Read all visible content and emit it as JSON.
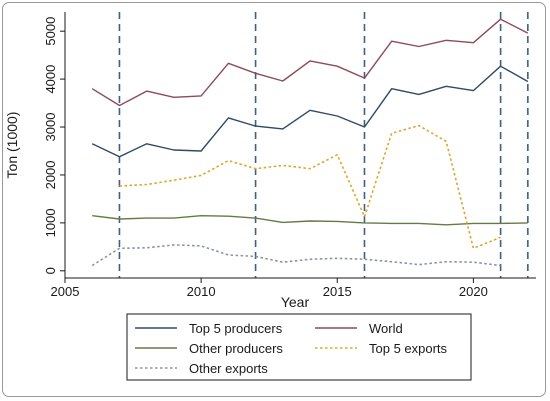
{
  "chart_data": {
    "type": "line",
    "xlabel": "Year",
    "ylabel": "Ton (1000)",
    "xlim": [
      2005,
      2022.3
    ],
    "ylim": [
      -150,
      5400
    ],
    "x_ticks": [
      2005,
      2010,
      2015,
      2020
    ],
    "x_tick_labels": [
      "2005",
      "2010",
      "2015",
      "2020"
    ],
    "y_ticks": [
      0,
      1000,
      2000,
      3000,
      4000,
      5000
    ],
    "y_tick_labels": [
      "0",
      "1000",
      "2000",
      "3000",
      "4000",
      "5000"
    ],
    "vertical_reference_lines": [
      2007,
      2012,
      2016,
      2021,
      2022
    ],
    "grid": false,
    "legend_position": "bottom",
    "series": [
      {
        "name": "Top 5 producers",
        "color": "#2f4b66",
        "style": "solid",
        "x": [
          2006,
          2007,
          2008,
          2009,
          2010,
          2011,
          2012,
          2013,
          2014,
          2015,
          2016,
          2017,
          2018,
          2019,
          2020,
          2021,
          2022
        ],
        "values": [
          2650,
          2380,
          2650,
          2520,
          2500,
          3190,
          3020,
          2960,
          3350,
          3230,
          3000,
          3800,
          3680,
          3850,
          3760,
          4270,
          3950
        ]
      },
      {
        "name": "World",
        "color": "#8c4b5a",
        "style": "solid",
        "x": [
          2006,
          2007,
          2008,
          2009,
          2010,
          2011,
          2012,
          2013,
          2014,
          2015,
          2016,
          2017,
          2018,
          2019,
          2020,
          2021,
          2022
        ],
        "values": [
          3800,
          3450,
          3750,
          3620,
          3650,
          4330,
          4120,
          3960,
          4380,
          4270,
          4020,
          4790,
          4680,
          4810,
          4760,
          5250,
          4960
        ]
      },
      {
        "name": "Other producers",
        "color": "#667a45",
        "style": "solid",
        "x": [
          2006,
          2007,
          2008,
          2009,
          2010,
          2011,
          2012,
          2013,
          2014,
          2015,
          2016,
          2017,
          2018,
          2019,
          2020,
          2021,
          2022
        ],
        "values": [
          1150,
          1080,
          1100,
          1100,
          1150,
          1140,
          1100,
          1010,
          1040,
          1030,
          1000,
          990,
          990,
          960,
          990,
          990,
          1000
        ]
      },
      {
        "name": "Top 5 exports",
        "color": "#e0a52a",
        "style": "dotted",
        "x": [
          2007,
          2008,
          2009,
          2010,
          2011,
          2012,
          2013,
          2014,
          2015,
          2016,
          2017,
          2018,
          2019,
          2020,
          2021
        ],
        "values": [
          1770,
          1800,
          1890,
          1990,
          2300,
          2130,
          2200,
          2130,
          2420,
          1130,
          2870,
          3030,
          2700,
          470,
          700
        ]
      },
      {
        "name": "Other exports",
        "color": "#8a959e",
        "style": "dotted",
        "x": [
          2006,
          2007,
          2008,
          2009,
          2010,
          2011,
          2012,
          2013,
          2014,
          2015,
          2016,
          2017,
          2018,
          2019,
          2020,
          2021
        ],
        "values": [
          110,
          470,
          480,
          540,
          520,
          330,
          300,
          180,
          240,
          260,
          240,
          190,
          130,
          190,
          180,
          110
        ]
      }
    ]
  }
}
